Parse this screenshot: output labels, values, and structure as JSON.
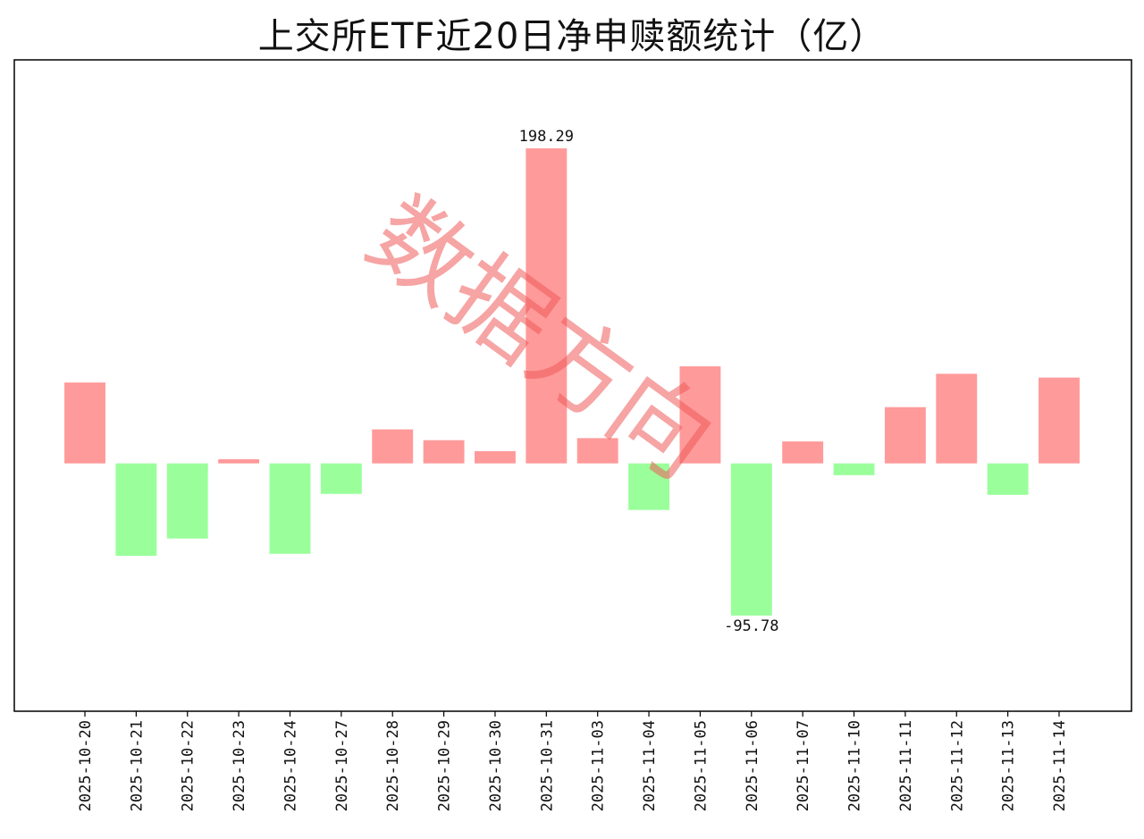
{
  "page_title": "上交所ETF近20日净申赎额统计（亿）",
  "watermark": "数据方向",
  "colors": {
    "positive": "#ff9a9a",
    "negative": "#9aff9a",
    "axis": "#000000",
    "watermark": "#f05a5a"
  },
  "chart_data": {
    "type": "bar",
    "title": "上交所ETF近20日净申赎额统计（亿）",
    "xlabel": "",
    "ylabel": "",
    "categories": [
      "2025-10-20",
      "2025-10-21",
      "2025-10-22",
      "2025-10-23",
      "2025-10-24",
      "2025-10-27",
      "2025-10-28",
      "2025-10-29",
      "2025-10-30",
      "2025-10-31",
      "2025-11-03",
      "2025-11-04",
      "2025-11-05",
      "2025-11-06",
      "2025-11-07",
      "2025-11-10",
      "2025-11-11",
      "2025-11-12",
      "2025-11-13",
      "2025-11-14"
    ],
    "values": [
      50.9,
      -58.2,
      -47.3,
      2.6,
      -56.9,
      -19.2,
      21.4,
      14.6,
      7.7,
      198.29,
      15.9,
      -29.3,
      61.1,
      -95.78,
      13.8,
      -7.4,
      35.4,
      56.4,
      -19.8,
      54.0
    ],
    "labels": {
      "9": "198.29",
      "13": "-95.78"
    },
    "ylim": [
      -156,
      254
    ],
    "grid": false,
    "y_ticks_shown": false
  }
}
